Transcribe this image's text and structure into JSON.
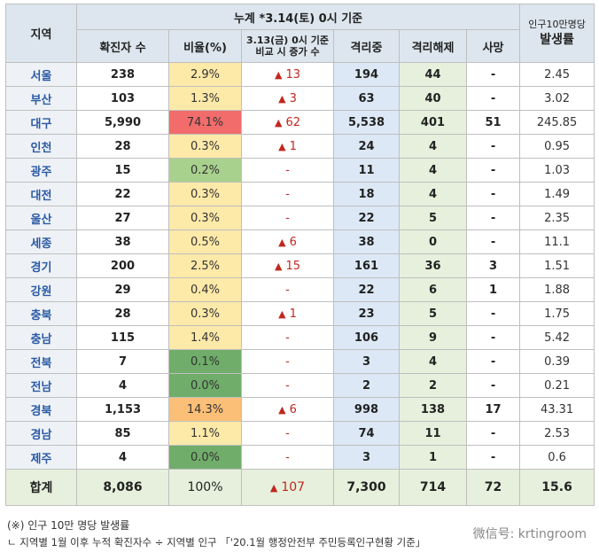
{
  "header": {
    "region": "지역",
    "cumulative": "누계 *3.14(토) 0시 기준",
    "confirmed": "확진자 수",
    "ratio": "비율(%)",
    "increase_line1": "3.13(금) 0시 기준",
    "increase_line2": "비교 시 증가 수",
    "isolated": "격리중",
    "released": "격리해제",
    "deaths": "사망",
    "rate_line1": "인구10만명당",
    "rate_line2": "발생률"
  },
  "rows": [
    {
      "region": "서울",
      "confirmed": "238",
      "ratio": "2.9%",
      "increase": "13",
      "isolated": "194",
      "released": "44",
      "deaths": "-",
      "rate": "2.45",
      "ratio_color": "#fde9a8"
    },
    {
      "region": "부산",
      "confirmed": "103",
      "ratio": "1.3%",
      "increase": "3",
      "isolated": "63",
      "released": "40",
      "deaths": "-",
      "rate": "3.02",
      "ratio_color": "#fde9a8"
    },
    {
      "region": "대구",
      "confirmed": "5,990",
      "ratio": "74.1%",
      "increase": "62",
      "isolated": "5,538",
      "released": "401",
      "deaths": "51",
      "rate": "245.85",
      "ratio_color": "#f26c6c"
    },
    {
      "region": "인천",
      "confirmed": "28",
      "ratio": "0.3%",
      "increase": "1",
      "isolated": "24",
      "released": "4",
      "deaths": "-",
      "rate": "0.95",
      "ratio_color": "#fde9a8"
    },
    {
      "region": "광주",
      "confirmed": "15",
      "ratio": "0.2%",
      "increase": "-",
      "isolated": "11",
      "released": "4",
      "deaths": "-",
      "rate": "1.03",
      "ratio_color": "#a9d18e"
    },
    {
      "region": "대전",
      "confirmed": "22",
      "ratio": "0.3%",
      "increase": "-",
      "isolated": "18",
      "released": "4",
      "deaths": "-",
      "rate": "1.49",
      "ratio_color": "#fde9a8"
    },
    {
      "region": "울산",
      "confirmed": "27",
      "ratio": "0.3%",
      "increase": "-",
      "isolated": "22",
      "released": "5",
      "deaths": "-",
      "rate": "2.35",
      "ratio_color": "#fde9a8"
    },
    {
      "region": "세종",
      "confirmed": "38",
      "ratio": "0.5%",
      "increase": "6",
      "isolated": "38",
      "released": "0",
      "deaths": "-",
      "rate": "11.1",
      "ratio_color": "#fde9a8"
    },
    {
      "region": "경기",
      "confirmed": "200",
      "ratio": "2.5%",
      "increase": "15",
      "isolated": "161",
      "released": "36",
      "deaths": "3",
      "rate": "1.51",
      "ratio_color": "#fde9a8"
    },
    {
      "region": "강원",
      "confirmed": "29",
      "ratio": "0.4%",
      "increase": "-",
      "isolated": "22",
      "released": "6",
      "deaths": "1",
      "rate": "1.88",
      "ratio_color": "#fde9a8"
    },
    {
      "region": "충북",
      "confirmed": "28",
      "ratio": "0.3%",
      "increase": "1",
      "isolated": "23",
      "released": "5",
      "deaths": "-",
      "rate": "1.75",
      "ratio_color": "#fde9a8"
    },
    {
      "region": "충남",
      "confirmed": "115",
      "ratio": "1.4%",
      "increase": "-",
      "isolated": "106",
      "released": "9",
      "deaths": "-",
      "rate": "5.42",
      "ratio_color": "#fde9a8"
    },
    {
      "region": "전북",
      "confirmed": "7",
      "ratio": "0.1%",
      "increase": "-",
      "isolated": "3",
      "released": "4",
      "deaths": "-",
      "rate": "0.39",
      "ratio_color": "#70ad6a"
    },
    {
      "region": "전남",
      "confirmed": "4",
      "ratio": "0.0%",
      "increase": "-",
      "isolated": "2",
      "released": "2",
      "deaths": "-",
      "rate": "0.21",
      "ratio_color": "#70ad6a"
    },
    {
      "region": "경북",
      "confirmed": "1,153",
      "ratio": "14.3%",
      "increase": "6",
      "isolated": "998",
      "released": "138",
      "deaths": "17",
      "rate": "43.31",
      "ratio_color": "#fbbf77"
    },
    {
      "region": "경남",
      "confirmed": "85",
      "ratio": "1.1%",
      "increase": "-",
      "isolated": "74",
      "released": "11",
      "deaths": "-",
      "rate": "2.53",
      "ratio_color": "#fde9a8"
    },
    {
      "region": "제주",
      "confirmed": "4",
      "ratio": "0.0%",
      "increase": "-",
      "isolated": "3",
      "released": "1",
      "deaths": "-",
      "rate": "0.6",
      "ratio_color": "#70ad6a"
    }
  ],
  "total": {
    "region": "합계",
    "confirmed": "8,086",
    "ratio": "100%",
    "increase": "107",
    "isolated": "7,300",
    "released": "714",
    "deaths": "72",
    "rate": "15.6"
  },
  "footnote": {
    "line1": "(※) 인구 10만 명당 발생률",
    "line2": "ㄴ 지역별 1월 이후 누적 확진자수 ÷ 지역별 인구 「'20.1월 행정안전부 주민등록인구현황 기준」"
  },
  "watermark": "微信号: krtingroom",
  "colors": {
    "header_bg": "#dde6ee",
    "region_text": "#2b5aa5",
    "triangle": "#c0281f",
    "isolated_bg": "#dce8f5",
    "released_bg": "#e6f0dc"
  }
}
